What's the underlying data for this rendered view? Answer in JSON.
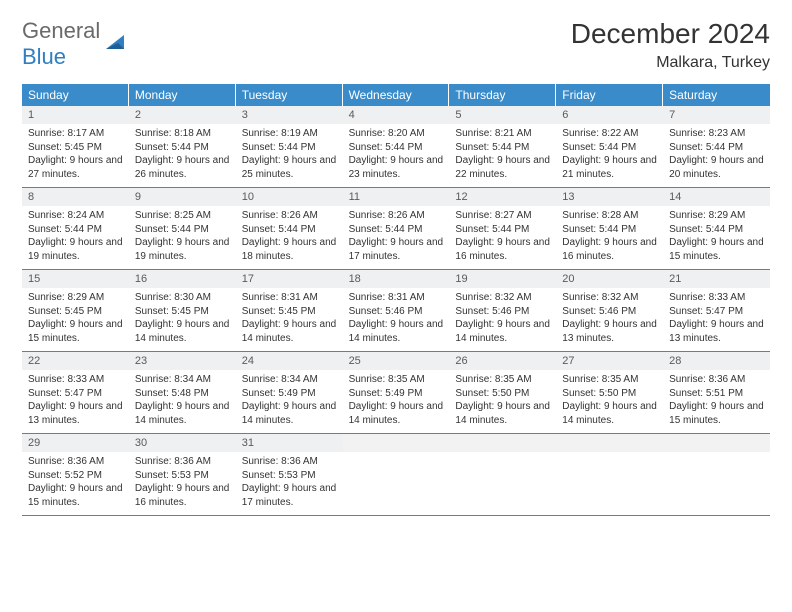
{
  "logo": {
    "part1": "General",
    "part2": "Blue"
  },
  "title": "December 2024",
  "location": "Malkara, Turkey",
  "colors": {
    "header_bg": "#3a8bc9",
    "header_text": "#ffffff",
    "daynum_bg": "#eef0f1",
    "border": "#3a8bc9",
    "text": "#333333",
    "logo_gray": "#6a6a6a",
    "logo_blue": "#2f7fc2"
  },
  "day_headers": [
    "Sunday",
    "Monday",
    "Tuesday",
    "Wednesday",
    "Thursday",
    "Friday",
    "Saturday"
  ],
  "days": [
    {
      "n": "1",
      "sunrise": "Sunrise: 8:17 AM",
      "sunset": "Sunset: 5:45 PM",
      "daylight": "Daylight: 9 hours and 27 minutes."
    },
    {
      "n": "2",
      "sunrise": "Sunrise: 8:18 AM",
      "sunset": "Sunset: 5:44 PM",
      "daylight": "Daylight: 9 hours and 26 minutes."
    },
    {
      "n": "3",
      "sunrise": "Sunrise: 8:19 AM",
      "sunset": "Sunset: 5:44 PM",
      "daylight": "Daylight: 9 hours and 25 minutes."
    },
    {
      "n": "4",
      "sunrise": "Sunrise: 8:20 AM",
      "sunset": "Sunset: 5:44 PM",
      "daylight": "Daylight: 9 hours and 23 minutes."
    },
    {
      "n": "5",
      "sunrise": "Sunrise: 8:21 AM",
      "sunset": "Sunset: 5:44 PM",
      "daylight": "Daylight: 9 hours and 22 minutes."
    },
    {
      "n": "6",
      "sunrise": "Sunrise: 8:22 AM",
      "sunset": "Sunset: 5:44 PM",
      "daylight": "Daylight: 9 hours and 21 minutes."
    },
    {
      "n": "7",
      "sunrise": "Sunrise: 8:23 AM",
      "sunset": "Sunset: 5:44 PM",
      "daylight": "Daylight: 9 hours and 20 minutes."
    },
    {
      "n": "8",
      "sunrise": "Sunrise: 8:24 AM",
      "sunset": "Sunset: 5:44 PM",
      "daylight": "Daylight: 9 hours and 19 minutes."
    },
    {
      "n": "9",
      "sunrise": "Sunrise: 8:25 AM",
      "sunset": "Sunset: 5:44 PM",
      "daylight": "Daylight: 9 hours and 19 minutes."
    },
    {
      "n": "10",
      "sunrise": "Sunrise: 8:26 AM",
      "sunset": "Sunset: 5:44 PM",
      "daylight": "Daylight: 9 hours and 18 minutes."
    },
    {
      "n": "11",
      "sunrise": "Sunrise: 8:26 AM",
      "sunset": "Sunset: 5:44 PM",
      "daylight": "Daylight: 9 hours and 17 minutes."
    },
    {
      "n": "12",
      "sunrise": "Sunrise: 8:27 AM",
      "sunset": "Sunset: 5:44 PM",
      "daylight": "Daylight: 9 hours and 16 minutes."
    },
    {
      "n": "13",
      "sunrise": "Sunrise: 8:28 AM",
      "sunset": "Sunset: 5:44 PM",
      "daylight": "Daylight: 9 hours and 16 minutes."
    },
    {
      "n": "14",
      "sunrise": "Sunrise: 8:29 AM",
      "sunset": "Sunset: 5:44 PM",
      "daylight": "Daylight: 9 hours and 15 minutes."
    },
    {
      "n": "15",
      "sunrise": "Sunrise: 8:29 AM",
      "sunset": "Sunset: 5:45 PM",
      "daylight": "Daylight: 9 hours and 15 minutes."
    },
    {
      "n": "16",
      "sunrise": "Sunrise: 8:30 AM",
      "sunset": "Sunset: 5:45 PM",
      "daylight": "Daylight: 9 hours and 14 minutes."
    },
    {
      "n": "17",
      "sunrise": "Sunrise: 8:31 AM",
      "sunset": "Sunset: 5:45 PM",
      "daylight": "Daylight: 9 hours and 14 minutes."
    },
    {
      "n": "18",
      "sunrise": "Sunrise: 8:31 AM",
      "sunset": "Sunset: 5:46 PM",
      "daylight": "Daylight: 9 hours and 14 minutes."
    },
    {
      "n": "19",
      "sunrise": "Sunrise: 8:32 AM",
      "sunset": "Sunset: 5:46 PM",
      "daylight": "Daylight: 9 hours and 14 minutes."
    },
    {
      "n": "20",
      "sunrise": "Sunrise: 8:32 AM",
      "sunset": "Sunset: 5:46 PM",
      "daylight": "Daylight: 9 hours and 13 minutes."
    },
    {
      "n": "21",
      "sunrise": "Sunrise: 8:33 AM",
      "sunset": "Sunset: 5:47 PM",
      "daylight": "Daylight: 9 hours and 13 minutes."
    },
    {
      "n": "22",
      "sunrise": "Sunrise: 8:33 AM",
      "sunset": "Sunset: 5:47 PM",
      "daylight": "Daylight: 9 hours and 13 minutes."
    },
    {
      "n": "23",
      "sunrise": "Sunrise: 8:34 AM",
      "sunset": "Sunset: 5:48 PM",
      "daylight": "Daylight: 9 hours and 14 minutes."
    },
    {
      "n": "24",
      "sunrise": "Sunrise: 8:34 AM",
      "sunset": "Sunset: 5:49 PM",
      "daylight": "Daylight: 9 hours and 14 minutes."
    },
    {
      "n": "25",
      "sunrise": "Sunrise: 8:35 AM",
      "sunset": "Sunset: 5:49 PM",
      "daylight": "Daylight: 9 hours and 14 minutes."
    },
    {
      "n": "26",
      "sunrise": "Sunrise: 8:35 AM",
      "sunset": "Sunset: 5:50 PM",
      "daylight": "Daylight: 9 hours and 14 minutes."
    },
    {
      "n": "27",
      "sunrise": "Sunrise: 8:35 AM",
      "sunset": "Sunset: 5:50 PM",
      "daylight": "Daylight: 9 hours and 14 minutes."
    },
    {
      "n": "28",
      "sunrise": "Sunrise: 8:36 AM",
      "sunset": "Sunset: 5:51 PM",
      "daylight": "Daylight: 9 hours and 15 minutes."
    },
    {
      "n": "29",
      "sunrise": "Sunrise: 8:36 AM",
      "sunset": "Sunset: 5:52 PM",
      "daylight": "Daylight: 9 hours and 15 minutes."
    },
    {
      "n": "30",
      "sunrise": "Sunrise: 8:36 AM",
      "sunset": "Sunset: 5:53 PM",
      "daylight": "Daylight: 9 hours and 16 minutes."
    },
    {
      "n": "31",
      "sunrise": "Sunrise: 8:36 AM",
      "sunset": "Sunset: 5:53 PM",
      "daylight": "Daylight: 9 hours and 17 minutes."
    }
  ],
  "weeks": [
    [
      0,
      1,
      2,
      3,
      4,
      5,
      6
    ],
    [
      7,
      8,
      9,
      10,
      11,
      12,
      13
    ],
    [
      14,
      15,
      16,
      17,
      18,
      19,
      20
    ],
    [
      21,
      22,
      23,
      24,
      25,
      26,
      27
    ],
    [
      28,
      29,
      30,
      -1,
      -1,
      -1,
      -1
    ]
  ]
}
